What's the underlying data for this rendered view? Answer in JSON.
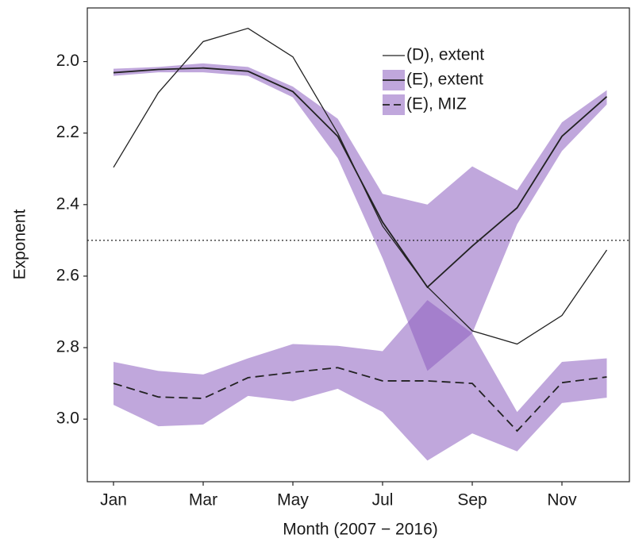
{
  "chart_data": {
    "type": "line",
    "x_label": "Month (2007 − 2016)",
    "y_label": "Exponent",
    "categories": [
      "Jan",
      null,
      "Mar",
      null,
      "May",
      null,
      "Jul",
      null,
      "Sep",
      null,
      "Nov",
      null
    ],
    "ylim": [
      1.85,
      3.175
    ],
    "y_inverted": true,
    "yticks": [
      {
        "value": 2.0,
        "label": "2.0"
      },
      {
        "value": 2.2,
        "label": "2.2"
      },
      {
        "value": 2.4,
        "label": "2.4"
      },
      {
        "value": 2.6,
        "label": "2.6"
      },
      {
        "value": 2.8,
        "label": "2.8"
      },
      {
        "value": 3.0,
        "label": "3.0"
      }
    ],
    "hline": 2.5,
    "band_color": "#8c5ec0",
    "series": [
      {
        "name": "(D), extent",
        "color": "#222222",
        "dash": false,
        "values": [
          2.296,
          2.087,
          1.944,
          1.907,
          1.987,
          2.2,
          2.46,
          2.63,
          2.753,
          2.79,
          2.71,
          2.527
        ]
      },
      {
        "name": "(E), extent",
        "color": "#222222",
        "dash": false,
        "values": [
          2.031,
          2.022,
          2.018,
          2.027,
          2.084,
          2.209,
          2.449,
          2.631,
          2.516,
          2.409,
          2.209,
          2.098
        ],
        "lower": [
          2.02,
          2.015,
          2.005,
          2.015,
          2.07,
          2.16,
          2.37,
          2.4,
          2.293,
          2.36,
          2.17,
          2.08
        ],
        "upper": [
          2.04,
          2.03,
          2.03,
          2.04,
          2.1,
          2.27,
          2.55,
          2.865,
          2.76,
          2.455,
          2.25,
          2.12
        ]
      },
      {
        "name": "(E), MIZ",
        "color": "#222222",
        "dash": true,
        "values": [
          2.9,
          2.938,
          2.942,
          2.884,
          2.869,
          2.856,
          2.893,
          2.893,
          2.9,
          3.033,
          2.898,
          2.882
        ],
        "lower": [
          2.84,
          2.865,
          2.875,
          2.83,
          2.79,
          2.795,
          2.81,
          2.667,
          2.76,
          2.98,
          2.84,
          2.83
        ],
        "upper": [
          2.96,
          3.02,
          3.015,
          2.935,
          2.95,
          2.915,
          2.98,
          3.116,
          3.04,
          3.09,
          2.955,
          2.94
        ]
      }
    ]
  }
}
